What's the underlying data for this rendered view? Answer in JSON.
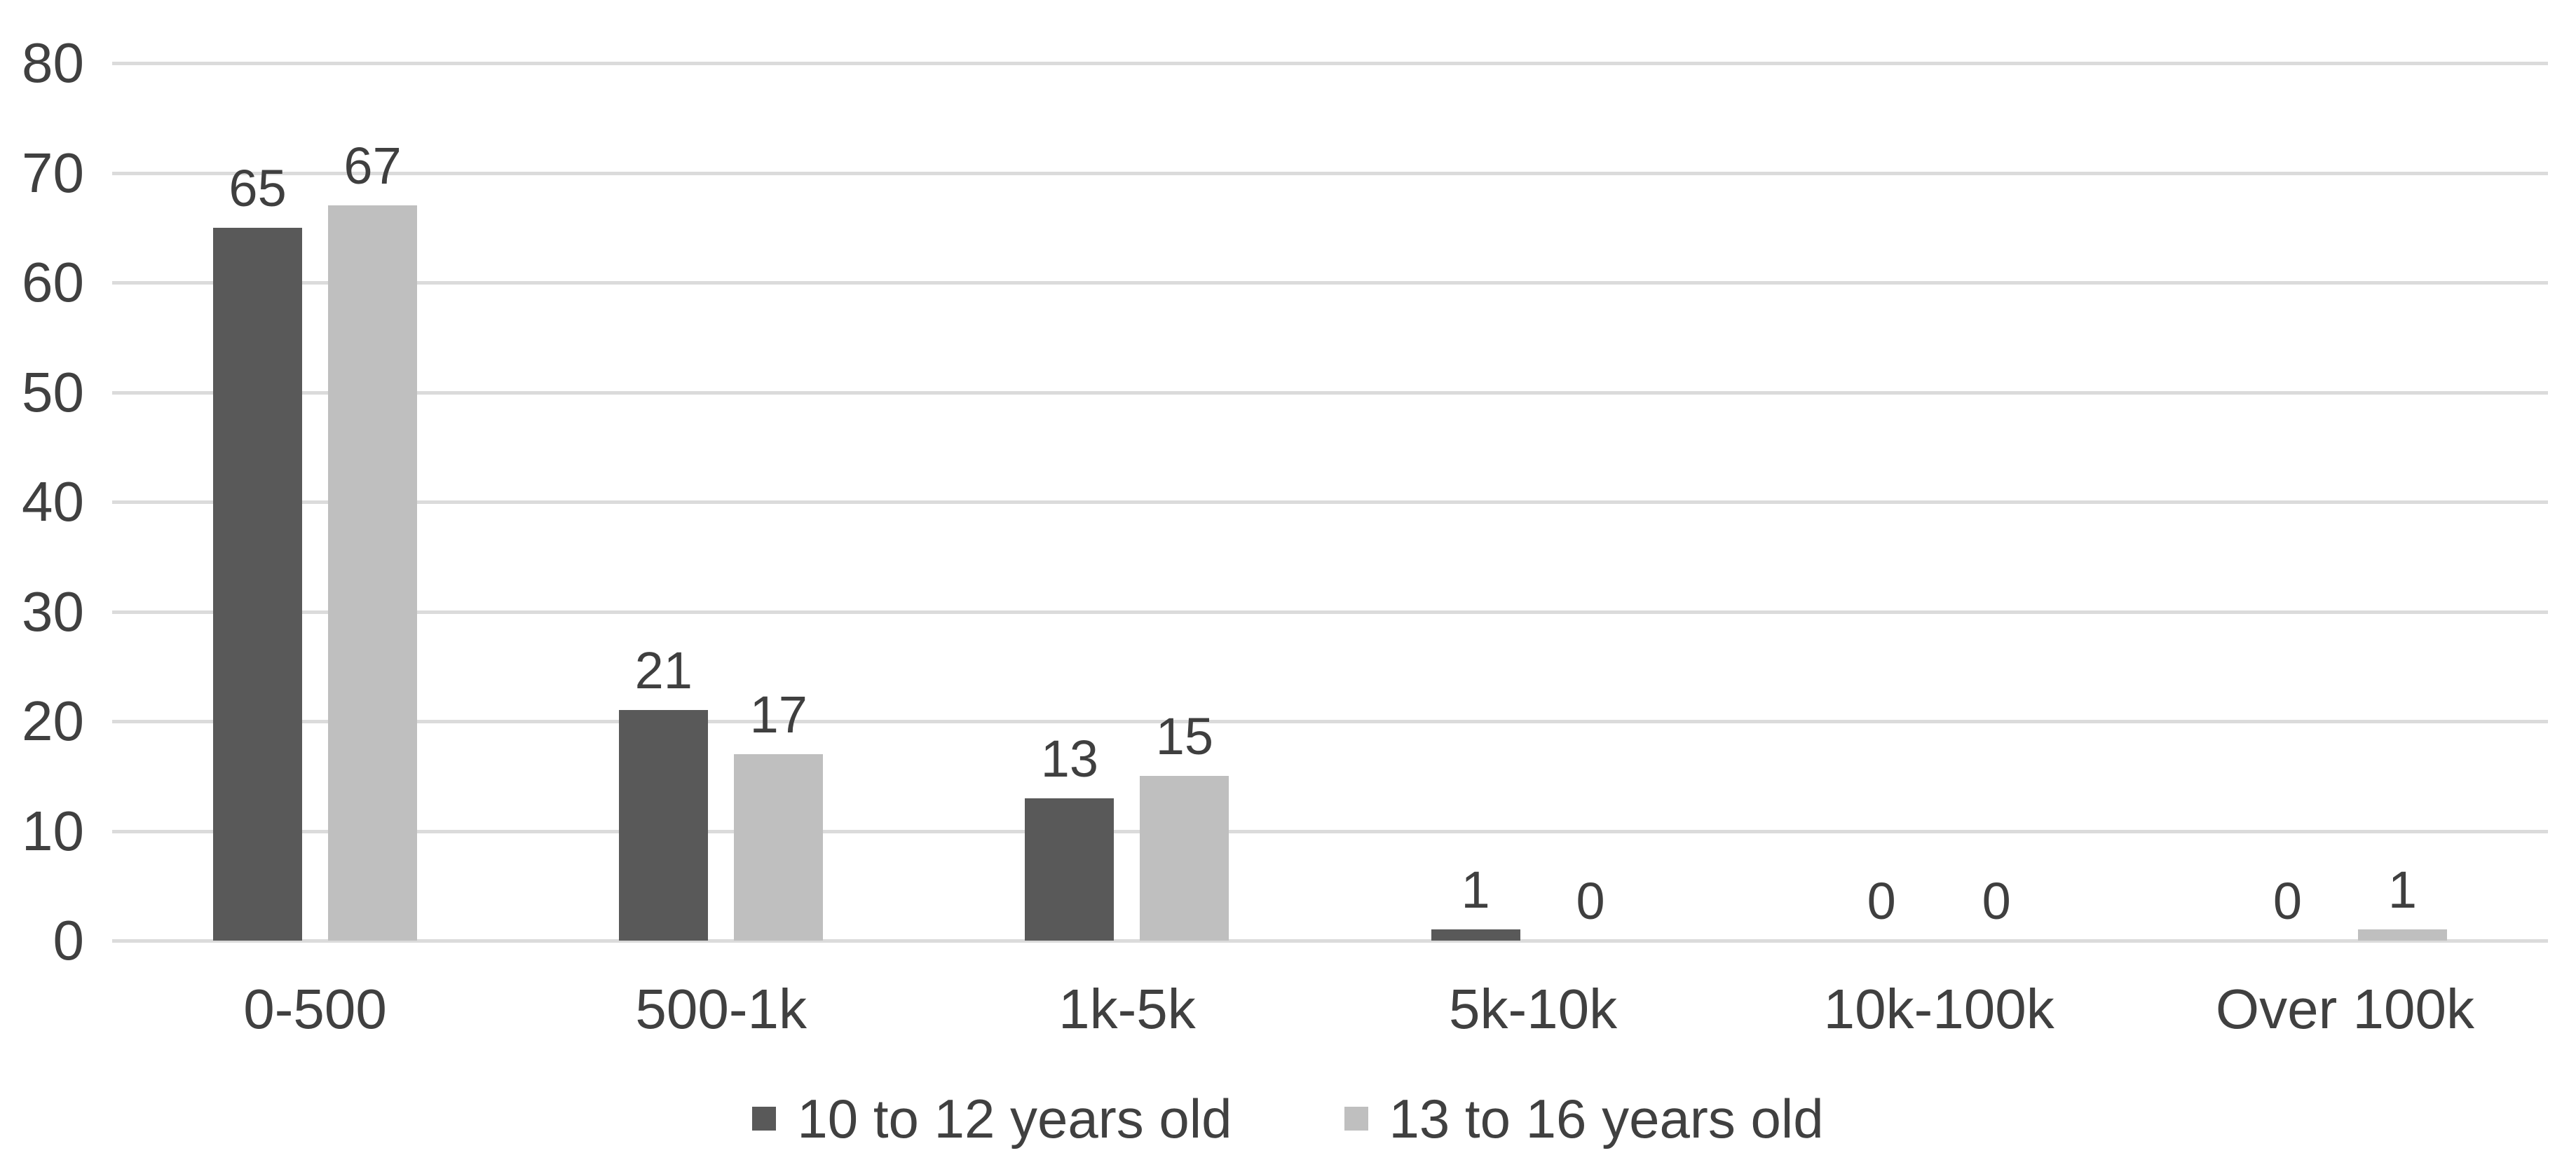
{
  "styles": {
    "background": "#ffffff",
    "text_color": "#404040",
    "value_label_color": "#3f3f3f",
    "gridline_color": "#dbdbdb"
  },
  "chart_data": {
    "type": "bar",
    "title": "",
    "xlabel": "",
    "ylabel": "",
    "categories": [
      "0-500",
      "500-1k",
      "1k-5k",
      "5k-10k",
      "10k-100k",
      "Over 100k"
    ],
    "series": [
      {
        "name": "10 to 12 years old",
        "color": "#595959",
        "values": [
          65,
          21,
          13,
          1,
          0,
          0
        ]
      },
      {
        "name": "13 to 16 years old",
        "color": "#bfbfbf",
        "values": [
          67,
          17,
          15,
          0,
          0,
          1
        ]
      }
    ],
    "value_labels": [
      [
        "65",
        "67"
      ],
      [
        "21",
        "17"
      ],
      [
        "13",
        "15"
      ],
      [
        "1",
        "0"
      ],
      [
        "0",
        "0"
      ],
      [
        "0",
        "1"
      ]
    ],
    "ylim": [
      0,
      80
    ],
    "yticks": [
      "0",
      "10",
      "20",
      "30",
      "40",
      "50",
      "60",
      "70",
      "80"
    ],
    "grid": true,
    "legend_position": "bottom"
  }
}
